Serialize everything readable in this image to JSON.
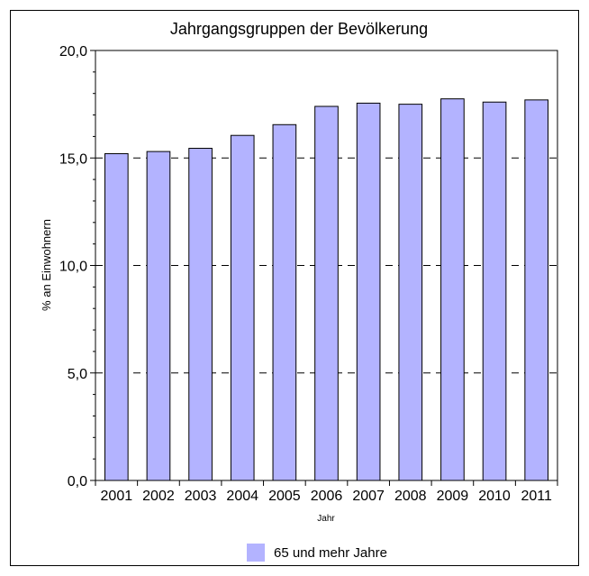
{
  "chart_data": {
    "type": "bar",
    "title": "Jahrgangsgruppen der Bevölkerung",
    "xlabel": "Jahr",
    "ylabel": "% an Einwohnern",
    "categories": [
      "2001",
      "2002",
      "2003",
      "2004",
      "2005",
      "2006",
      "2007",
      "2008",
      "2009",
      "2010",
      "2011"
    ],
    "series": [
      {
        "name": "65 und mehr Jahre",
        "values": [
          15.2,
          15.3,
          15.45,
          16.05,
          16.55,
          17.4,
          17.55,
          17.5,
          17.75,
          17.6,
          17.7
        ]
      }
    ],
    "ylim": [
      0,
      20
    ],
    "yticks": [
      "0,0",
      "5,0",
      "10,0",
      "15,0",
      "20,0"
    ],
    "grid": "horizontal dashed",
    "legend": "bottom",
    "bar_color": "#b3b3ff"
  }
}
